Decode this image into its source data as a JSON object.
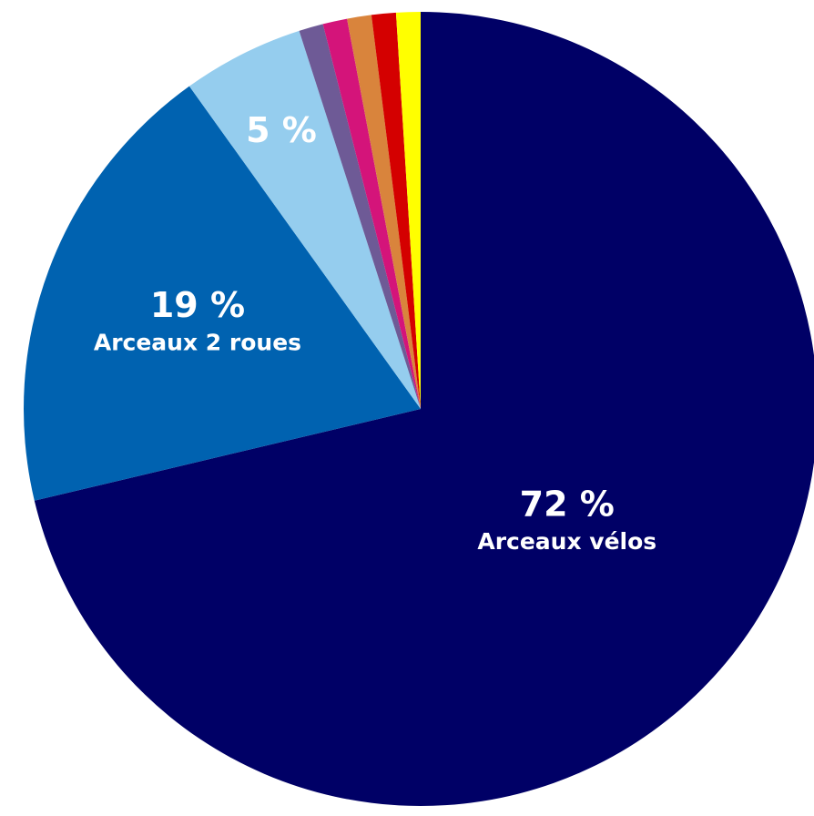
{
  "chart_data": {
    "type": "pie",
    "categories": [
      "Arceaux vélos",
      "Arceaux 2 roues",
      null,
      null,
      null,
      null,
      null,
      null
    ],
    "values": [
      72,
      19,
      5,
      1,
      1,
      1,
      1,
      1
    ],
    "value_labels": [
      "72 %",
      "19 %",
      "5 %",
      null,
      null,
      null,
      null,
      null
    ],
    "colors": [
      "#000066",
      "#0062b0",
      "#95cdee",
      "#6e5a96",
      "#d4147a",
      "#d9843c",
      "#d40000",
      "#ffff00"
    ]
  }
}
